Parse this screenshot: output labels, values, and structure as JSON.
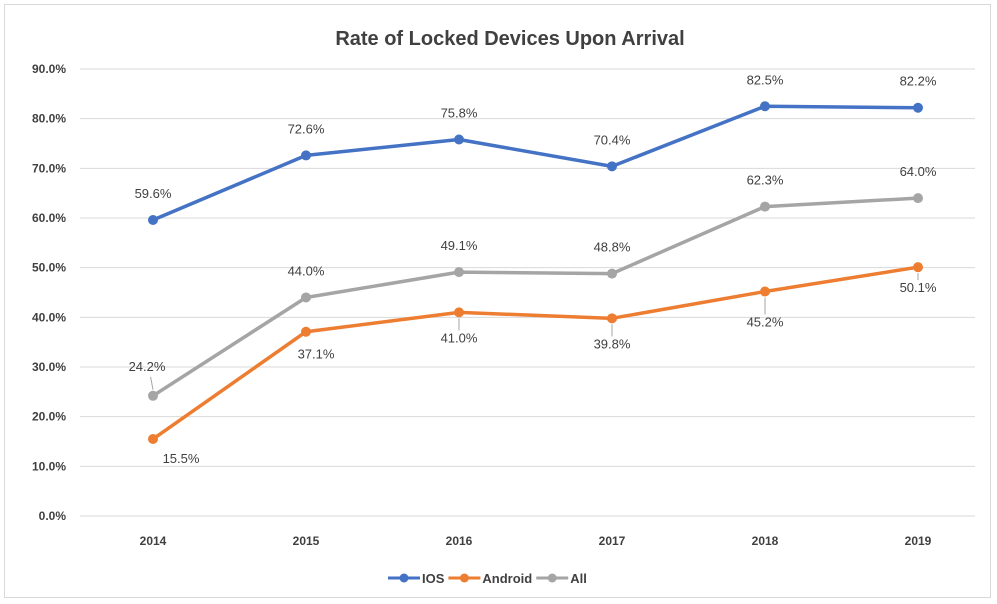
{
  "chart_data": {
    "type": "line",
    "title": "Rate of Locked Devices Upon Arrival",
    "categories": [
      "2014",
      "2015",
      "2016",
      "2017",
      "2018",
      "2019"
    ],
    "ylim": [
      0,
      90
    ],
    "yticks": [
      "0.0%",
      "10.0%",
      "20.0%",
      "30.0%",
      "40.0%",
      "50.0%",
      "60.0%",
      "70.0%",
      "80.0%",
      "90.0%"
    ],
    "grid": true,
    "legend_position": "bottom",
    "series": [
      {
        "name": "IOS",
        "color": "#4472c4",
        "values": [
          59.6,
          72.6,
          75.8,
          70.4,
          82.5,
          82.2
        ],
        "labels": [
          "59.6%",
          "72.6%",
          "75.8%",
          "70.4%",
          "82.5%",
          "82.2%"
        ]
      },
      {
        "name": "Android",
        "color": "#ed7d31",
        "values": [
          15.5,
          37.1,
          41.0,
          39.8,
          45.2,
          50.1
        ],
        "labels": [
          "15.5%",
          "37.1%",
          "41.0%",
          "39.8%",
          "45.2%",
          "50.1%"
        ]
      },
      {
        "name": "All",
        "color": "#a5a5a5",
        "values": [
          24.2,
          44.0,
          49.1,
          48.8,
          62.3,
          64.0
        ],
        "labels": [
          "24.2%",
          "44.0%",
          "49.1%",
          "48.8%",
          "62.3%",
          "64.0%"
        ]
      }
    ]
  }
}
